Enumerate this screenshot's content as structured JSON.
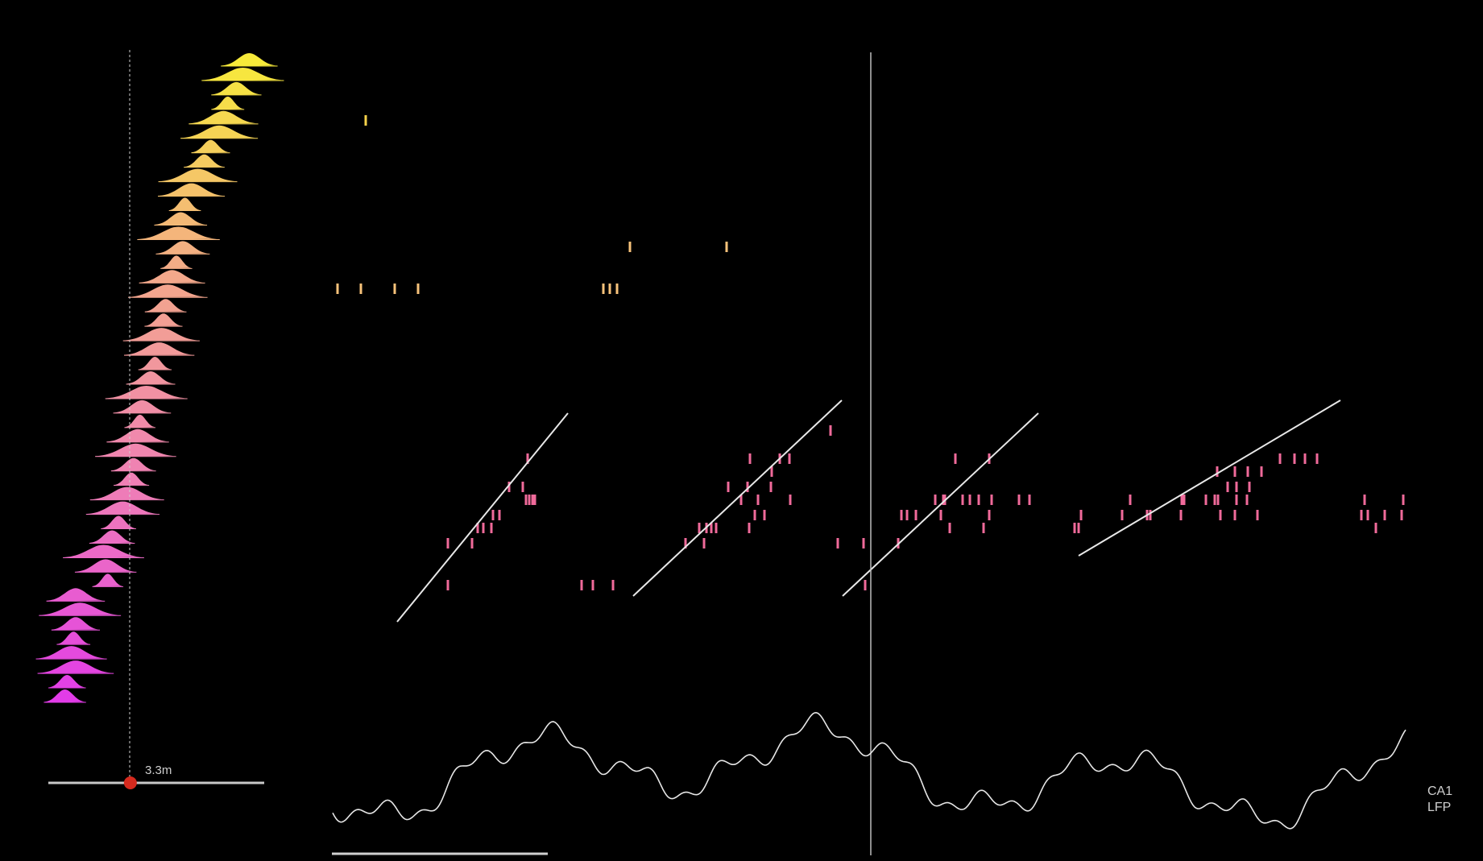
{
  "track": {
    "position_label": "3.3m",
    "position_fraction": 0.38,
    "marker_color": "#d62a1e"
  },
  "lfp": {
    "label_line1": "CA1",
    "label_line2": "LFP"
  },
  "colors": {
    "background": "#000000",
    "cell_gradient_top": "#f7ea3a",
    "cell_gradient_mid": "#f08fa8",
    "cell_gradient_bottom": "#e23ce8",
    "spike_pink": "#f06a9a",
    "line_color": "#e8e8e8"
  },
  "cells": [
    {
      "peak": 0.93
    },
    {
      "peak": 0.9
    },
    {
      "peak": 0.87
    },
    {
      "peak": 0.83
    },
    {
      "peak": 0.81
    },
    {
      "peak": 0.79
    },
    {
      "peak": 0.75
    },
    {
      "peak": 0.72
    },
    {
      "peak": 0.69
    },
    {
      "peak": 0.66
    },
    {
      "peak": 0.63
    },
    {
      "peak": 0.61
    },
    {
      "peak": 0.6
    },
    {
      "peak": 0.62
    },
    {
      "peak": 0.59
    },
    {
      "peak": 0.57
    },
    {
      "peak": 0.55
    },
    {
      "peak": 0.54
    },
    {
      "peak": 0.53
    },
    {
      "peak": 0.52
    },
    {
      "peak": 0.51
    },
    {
      "peak": 0.49
    },
    {
      "peak": 0.47
    },
    {
      "peak": 0.45
    },
    {
      "peak": 0.43
    },
    {
      "peak": 0.42
    },
    {
      "peak": 0.41
    },
    {
      "peak": 0.4
    },
    {
      "peak": 0.39
    },
    {
      "peak": 0.38
    },
    {
      "peak": 0.36
    },
    {
      "peak": 0.34
    },
    {
      "peak": 0.32
    },
    {
      "peak": 0.29
    },
    {
      "peak": 0.25
    },
    {
      "peak": 0.26
    },
    {
      "peak": 0.27
    },
    {
      "peak": 0.12
    },
    {
      "peak": 0.14
    },
    {
      "peak": 0.12
    },
    {
      "peak": 0.11
    },
    {
      "peak": 0.1
    },
    {
      "peak": 0.12
    },
    {
      "peak": 0.08
    },
    {
      "peak": 0.07
    }
  ]
}
